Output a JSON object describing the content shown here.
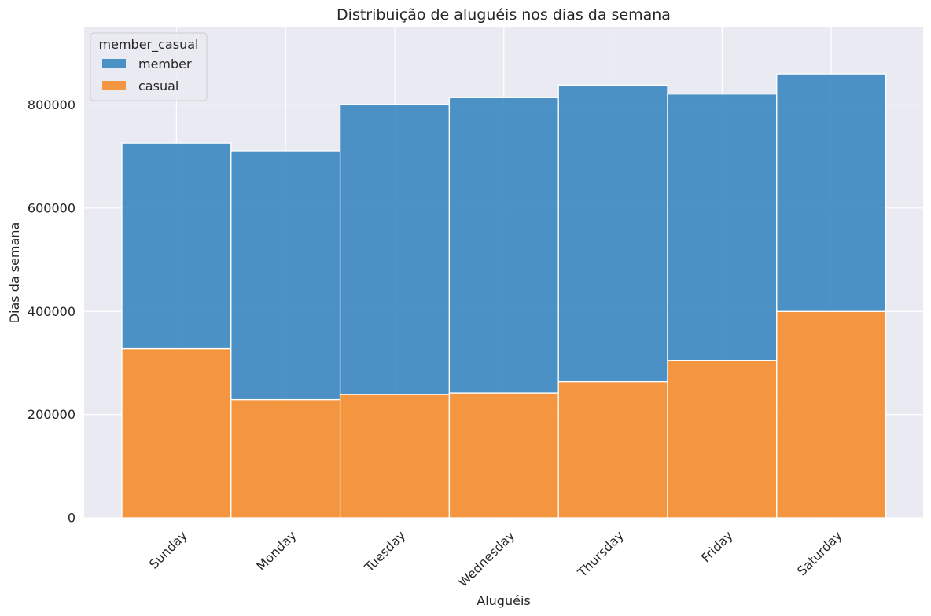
{
  "chart_data": {
    "type": "bar",
    "stacked": true,
    "title": "Distribuição de aluguéis nos dias da semana",
    "xlabel": "Aluguéis",
    "ylabel": "Dias da semana",
    "categories": [
      "Sunday",
      "Monday",
      "Tuesday",
      "Wednesday",
      "Thursday",
      "Friday",
      "Saturday"
    ],
    "series": [
      {
        "name": "casual",
        "color": "#f58c2b",
        "values": [
          328000,
          229000,
          239000,
          242000,
          264000,
          305000,
          400000
        ]
      },
      {
        "name": "member",
        "color": "#3b87c0",
        "values": [
          398000,
          482000,
          562000,
          572000,
          574000,
          516000,
          460000
        ]
      }
    ],
    "yticks": [
      0,
      200000,
      400000,
      600000,
      800000
    ],
    "ylim": [
      0,
      950000
    ],
    "grid": true,
    "legend": {
      "title": "member_casual",
      "order": [
        "member",
        "casual"
      ],
      "placement": "top-left"
    }
  }
}
